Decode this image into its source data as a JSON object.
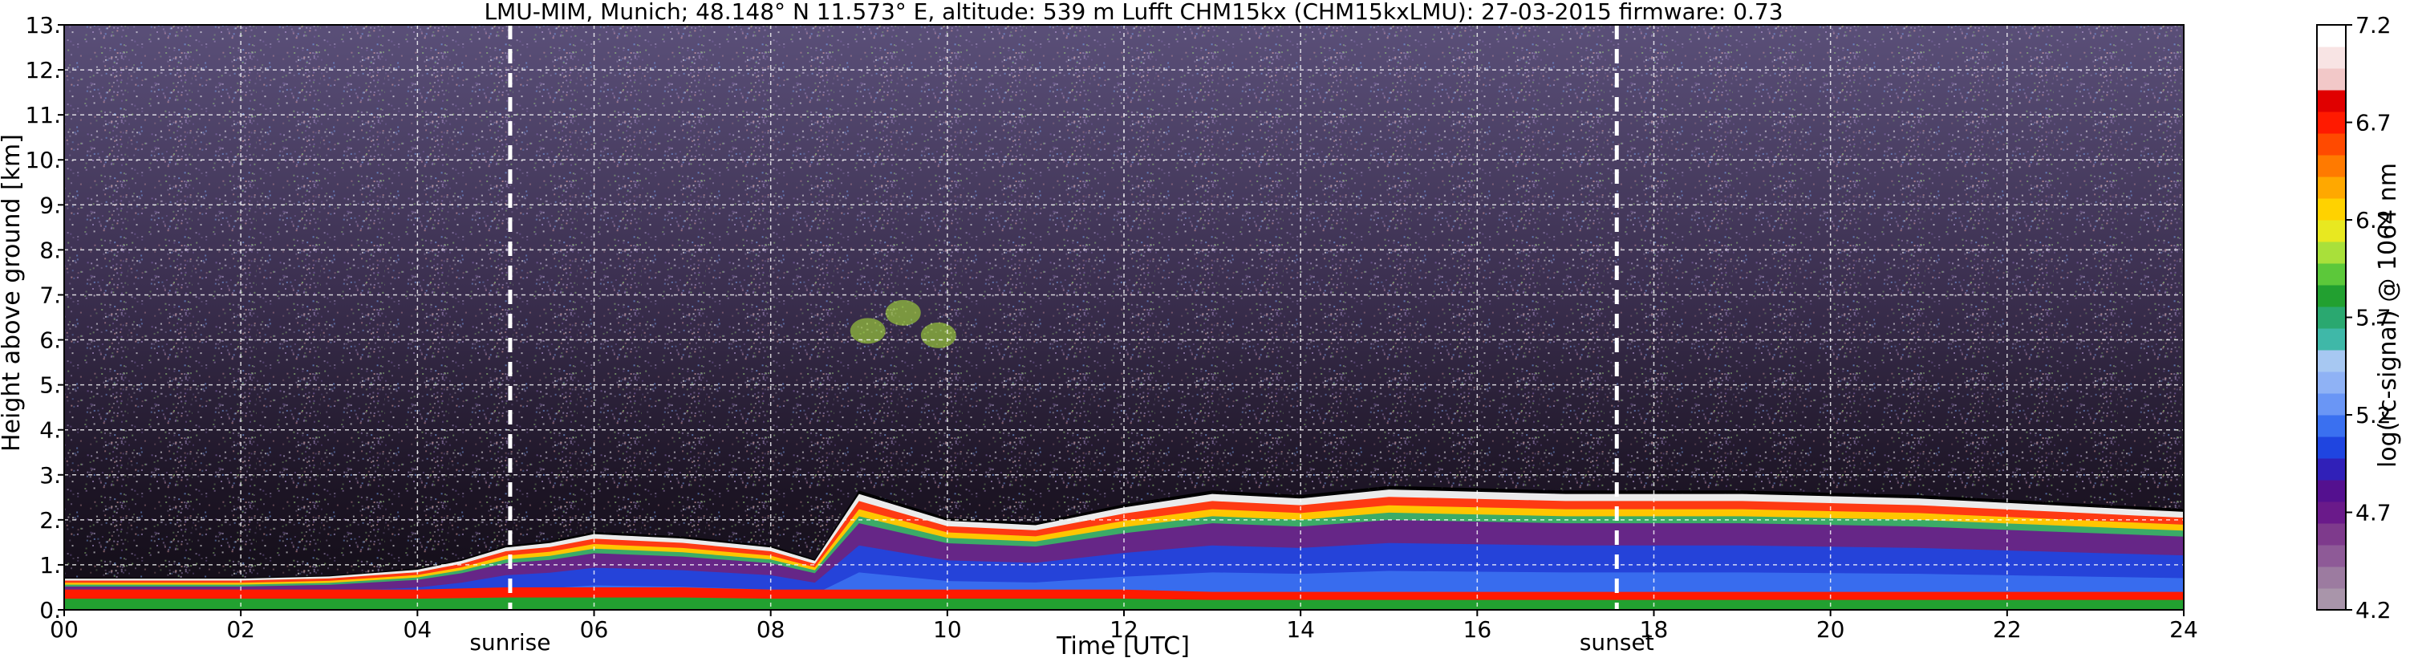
{
  "chart_data": {
    "type": "heatmap",
    "title": "LMU-MIM, Munich; 48.148° N 11.573° E, altitude: 539 m    Lufft CHM15kx (CHM15kxLMU): 27-03-2015    firmware: 0.73",
    "xlabel": "Time [UTC]",
    "ylabel": "Height above ground [km]",
    "xlim": [
      0,
      24
    ],
    "ylim": [
      0,
      13
    ],
    "x_ticks": [
      "00",
      "02",
      "04",
      "06",
      "08",
      "10",
      "12",
      "14",
      "16",
      "18",
      "20",
      "22",
      "24"
    ],
    "y_ticks": [
      "0.",
      "1.",
      "2.",
      "3.",
      "4.",
      "5.",
      "6.",
      "7.",
      "8.",
      "9.",
      "10.",
      "11.",
      "12.",
      "13."
    ],
    "grid": true,
    "grid_style": "dashed white",
    "colorbar": {
      "label": "log(rc-signal) @ 1064 nm",
      "range": [
        4.2,
        7.2
      ],
      "ticks": [
        "4.2",
        "4.7",
        "5.2",
        "5.7",
        "6.2",
        "6.7",
        "7.2"
      ],
      "colors": [
        "#a995aa",
        "#9c7ba0",
        "#8e5a97",
        "#7e3a8c",
        "#6a1a8a",
        "#54108f",
        "#3020b8",
        "#1f45e0",
        "#3a70f0",
        "#6a96f5",
        "#8fb2f5",
        "#a7c8f2",
        "#3fb8a8",
        "#2aa870",
        "#22a030",
        "#5cc83a",
        "#a9e03a",
        "#e8e820",
        "#ffd200",
        "#ffa800",
        "#ff7a00",
        "#ff4a00",
        "#ff1a00",
        "#e00000",
        "#f2c8c8",
        "#f8e4e4",
        "#ffffff"
      ]
    },
    "annotations": [
      {
        "label": "sunrise",
        "x": 5.05
      },
      {
        "label": "sunset",
        "x": 17.58
      }
    ],
    "layers": [
      {
        "name": "surface-signal",
        "x": [
          0,
          1,
          2,
          3,
          4,
          5,
          6,
          7,
          8,
          9,
          10,
          11,
          12,
          13,
          14,
          15,
          16,
          17,
          18,
          19,
          20,
          21,
          22,
          23,
          24
        ],
        "top": [
          0.45,
          0.45,
          0.45,
          0.45,
          0.45,
          0.5,
          0.5,
          0.5,
          0.45,
          0.45,
          0.45,
          0.45,
          0.45,
          0.4,
          0.4,
          0.4,
          0.4,
          0.4,
          0.4,
          0.4,
          0.4,
          0.4,
          0.4,
          0.4,
          0.4
        ]
      },
      {
        "name": "residual-layer-top",
        "x": [
          0,
          1,
          2,
          3,
          4,
          4.5,
          5,
          5.5,
          6,
          7,
          8,
          8.5,
          9,
          10,
          11,
          12,
          13,
          14,
          15,
          16,
          17,
          18,
          19,
          20,
          21,
          22,
          23,
          24
        ],
        "top": [
          0.7,
          0.7,
          0.7,
          0.75,
          0.9,
          1.1,
          1.4,
          1.5,
          1.7,
          1.6,
          1.4,
          1.1,
          2.6,
          2.0,
          1.9,
          2.3,
          2.6,
          2.5,
          2.7,
          2.65,
          2.6,
          2.6,
          2.6,
          2.55,
          2.5,
          2.4,
          2.3,
          2.2
        ]
      },
      {
        "name": "cloud",
        "x": [
          9.1,
          9.5,
          9.9
        ],
        "top": [
          6.2,
          6.6,
          6.1
        ]
      }
    ]
  }
}
